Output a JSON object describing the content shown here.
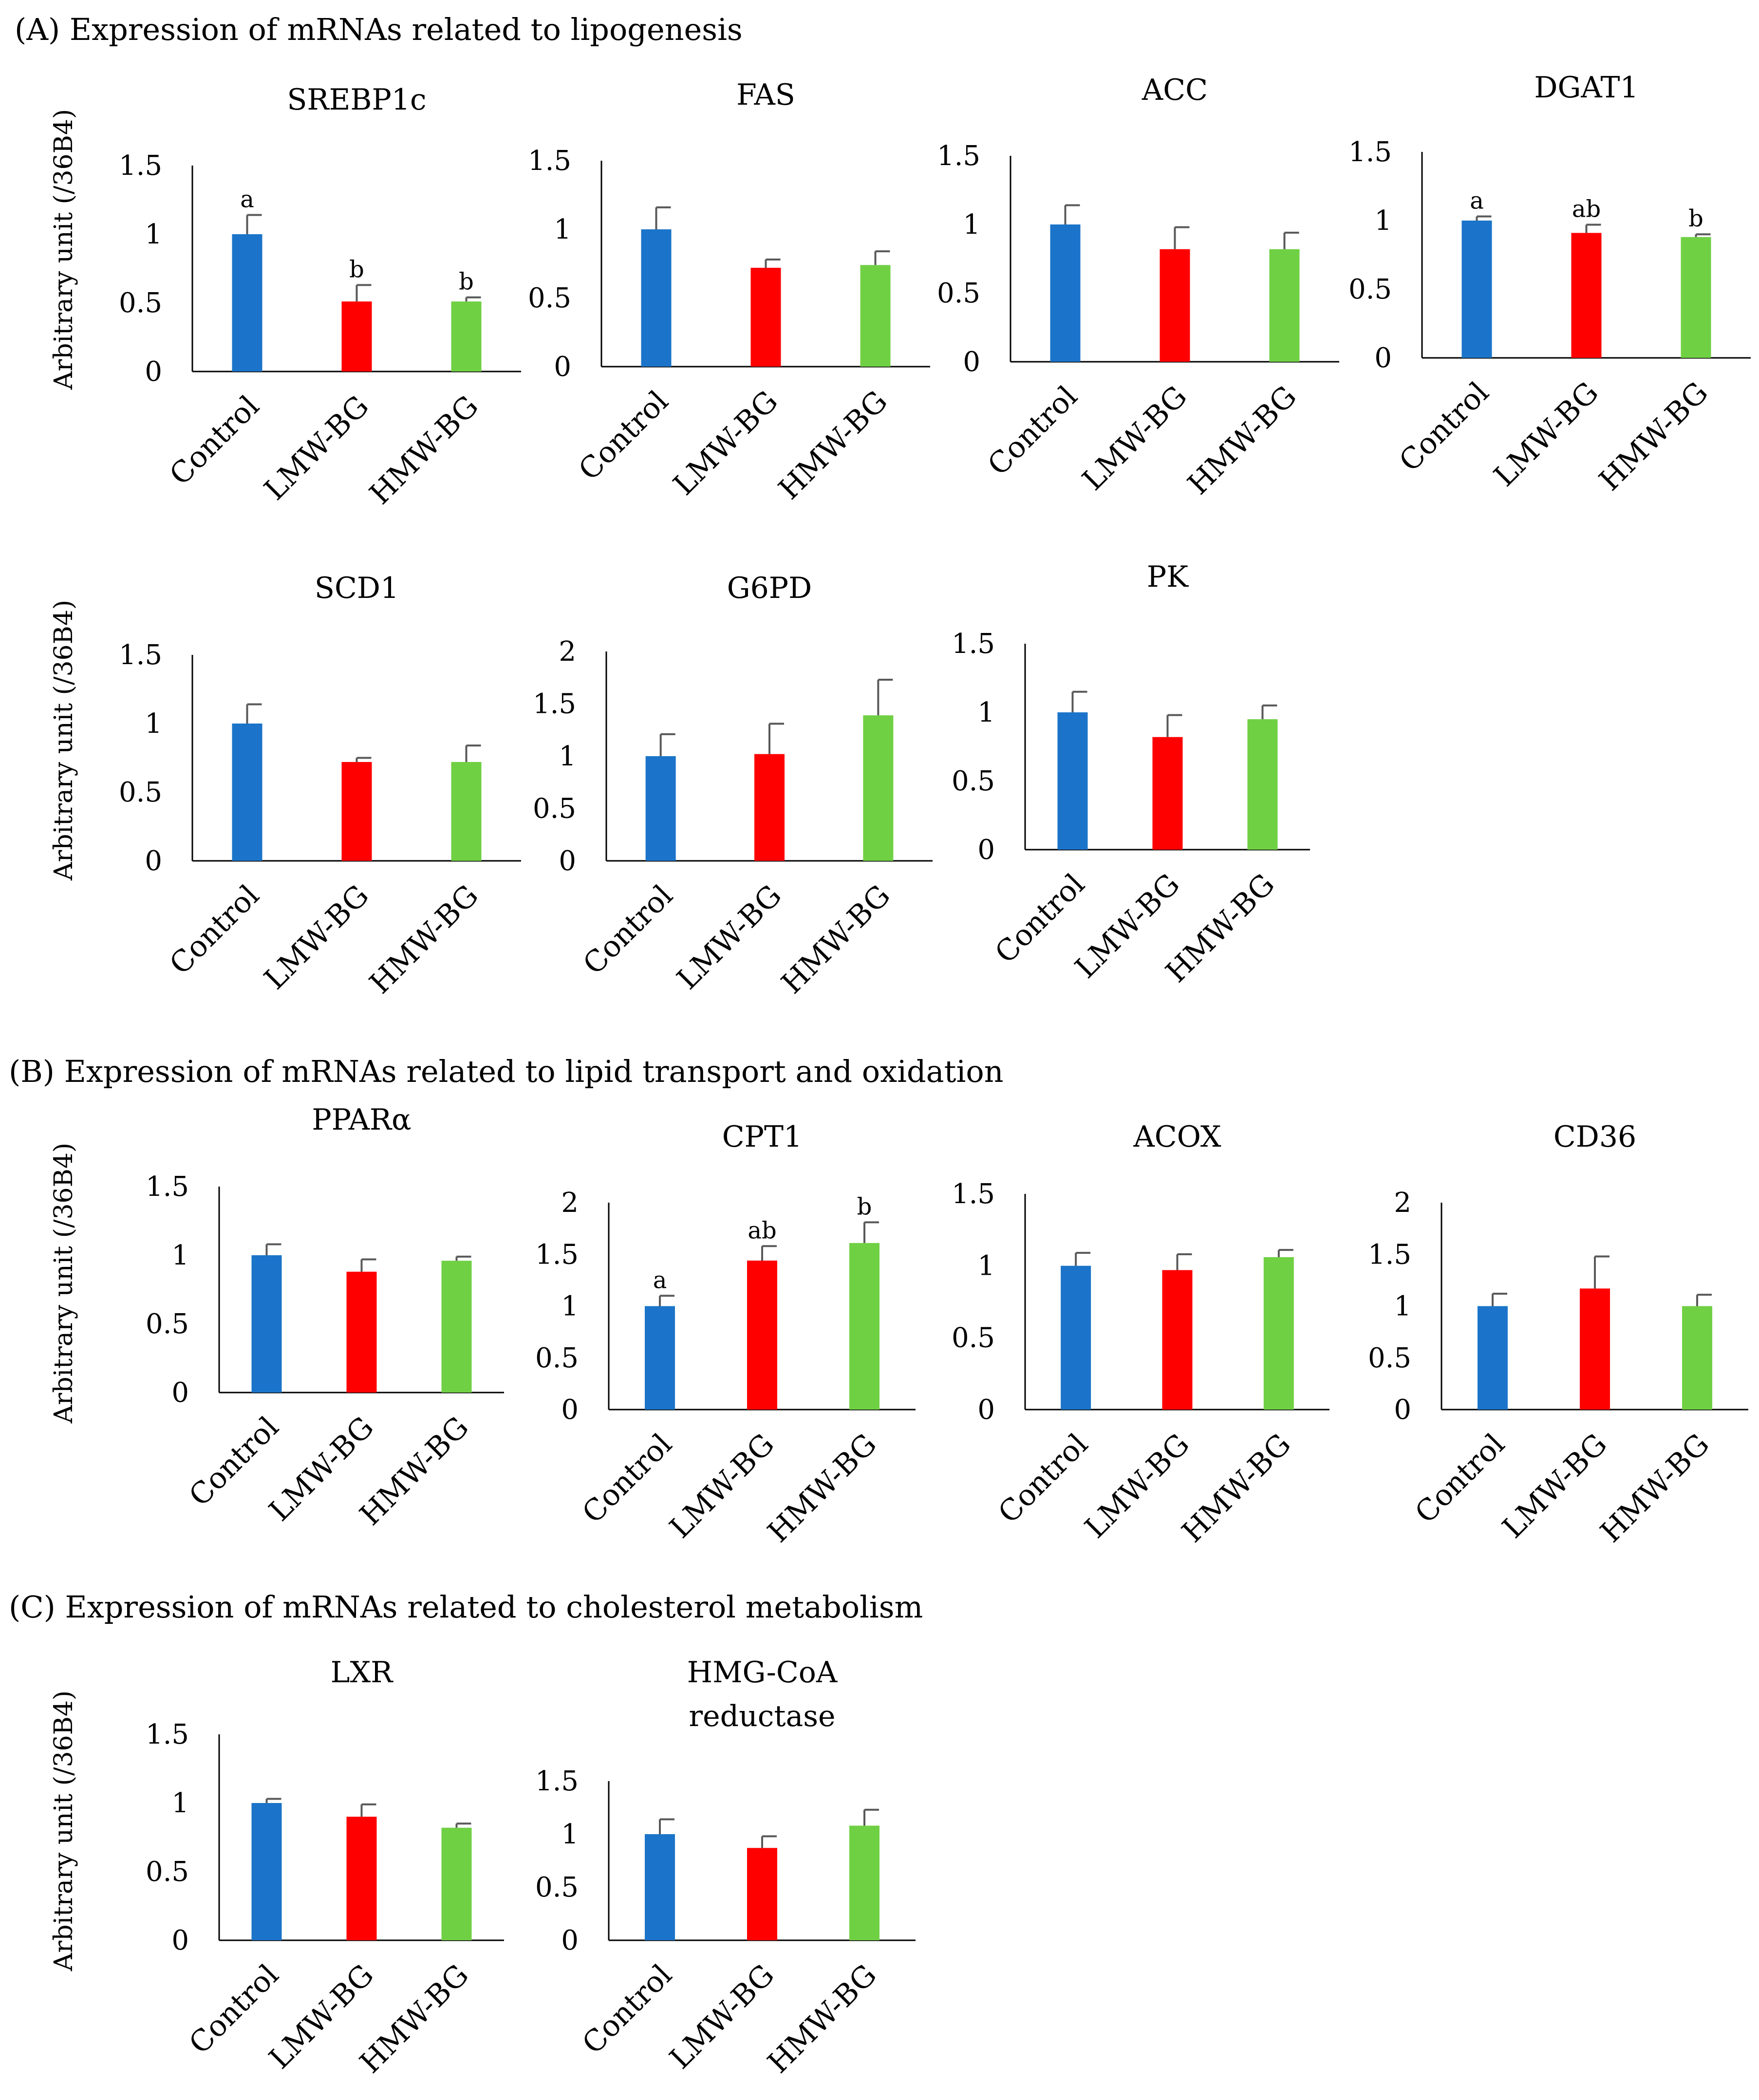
{
  "sections": [
    {
      "id": "A",
      "title": "(A)  Expression of mRNAs related to lipogenesis"
    },
    {
      "id": "B",
      "title": "(B)  Expression of mRNAs related to lipid transport and oxidation"
    },
    {
      "id": "C",
      "title": "(C)  Expression of mRNAs related to cholesterol metabolism"
    }
  ],
  "colors": {
    "Control": "#1b74c9",
    "LMW-BG": "#ff0000",
    "HMW-BG": "#70d044",
    "axis": "#000000",
    "error_bar": "#595959"
  },
  "chart_data": [
    {
      "type": "bar",
      "title": "SREBP1c",
      "ylabel": "Arbitrary unit (/36B4)",
      "categories": [
        "Control",
        "LMW-BG",
        "HMW-BG"
      ],
      "values": [
        1.0,
        0.51,
        0.51
      ],
      "errors": [
        0.14,
        0.12,
        0.03
      ],
      "significance": [
        "a",
        "b",
        "b"
      ],
      "ylim": [
        0,
        1.5
      ],
      "yticks": [
        0,
        0.5,
        1,
        1.5
      ],
      "ytick_labels": [
        "0",
        "0.5",
        "1",
        "1.5"
      ]
    },
    {
      "type": "bar",
      "title": "FAS",
      "ylabel": "",
      "categories": [
        "Control",
        "LMW-BG",
        "HMW-BG"
      ],
      "values": [
        1.0,
        0.72,
        0.74
      ],
      "errors": [
        0.16,
        0.06,
        0.1
      ],
      "significance": [
        "",
        "",
        ""
      ],
      "ylim": [
        0,
        1.5
      ],
      "yticks": [
        0,
        0.5,
        1,
        1.5
      ],
      "ytick_labels": [
        "0",
        "0.5",
        "1",
        "1.5"
      ]
    },
    {
      "type": "bar",
      "title": "ACC",
      "ylabel": "",
      "categories": [
        "Control",
        "LMW-BG",
        "HMW-BG"
      ],
      "values": [
        1.0,
        0.82,
        0.82
      ],
      "errors": [
        0.14,
        0.16,
        0.12
      ],
      "significance": [
        "",
        "",
        ""
      ],
      "ylim": [
        0,
        1.5
      ],
      "yticks": [
        0,
        0.5,
        1,
        1.5
      ],
      "ytick_labels": [
        "0",
        "0.5",
        "1",
        "1.5"
      ]
    },
    {
      "type": "bar",
      "title": "DGAT1",
      "ylabel": "",
      "categories": [
        "Control",
        "LMW-BG",
        "HMW-BG"
      ],
      "values": [
        1.0,
        0.91,
        0.88
      ],
      "errors": [
        0.03,
        0.06,
        0.02
      ],
      "significance": [
        "a",
        "ab",
        "b"
      ],
      "ylim": [
        0,
        1.5
      ],
      "yticks": [
        0,
        0.5,
        1,
        1.5
      ],
      "ytick_labels": [
        "0",
        "0.5",
        "1",
        "1.5"
      ]
    },
    {
      "type": "bar",
      "title": "SCD1",
      "ylabel": "Arbitrary unit (/36B4)",
      "categories": [
        "Control",
        "LMW-BG",
        "HMW-BG"
      ],
      "values": [
        1.0,
        0.72,
        0.72
      ],
      "errors": [
        0.14,
        0.03,
        0.12
      ],
      "significance": [
        "",
        "",
        ""
      ],
      "ylim": [
        0,
        1.5
      ],
      "yticks": [
        0,
        0.5,
        1,
        1.5
      ],
      "ytick_labels": [
        "0",
        "0.5",
        "1",
        "1.5"
      ]
    },
    {
      "type": "bar",
      "title": "G6PD",
      "ylabel": "",
      "categories": [
        "Control",
        "LMW-BG",
        "HMW-BG"
      ],
      "values": [
        1.0,
        1.02,
        1.39
      ],
      "errors": [
        0.21,
        0.29,
        0.34
      ],
      "significance": [
        "",
        "",
        ""
      ],
      "ylim": [
        0,
        2
      ],
      "yticks": [
        0,
        0.5,
        1,
        1.5,
        2
      ],
      "ytick_labels": [
        "0",
        "0.5",
        "1",
        "1.5",
        "2"
      ]
    },
    {
      "type": "bar",
      "title": "PK",
      "ylabel": "",
      "categories": [
        "Control",
        "LMW-BG",
        "HMW-BG"
      ],
      "values": [
        1.0,
        0.82,
        0.95
      ],
      "errors": [
        0.15,
        0.16,
        0.1
      ],
      "significance": [
        "",
        "",
        ""
      ],
      "ylim": [
        0,
        1.5
      ],
      "yticks": [
        0,
        0.5,
        1,
        1.5
      ],
      "ytick_labels": [
        "0",
        "0.5",
        "1",
        "1.5"
      ]
    },
    {
      "type": "bar",
      "title": "PPARα",
      "ylabel": "Arbitrary unit (/36B4)",
      "categories": [
        "Control",
        "LMW-BG",
        "HMW-BG"
      ],
      "values": [
        1.0,
        0.88,
        0.96
      ],
      "errors": [
        0.08,
        0.09,
        0.03
      ],
      "significance": [
        "",
        "",
        ""
      ],
      "ylim": [
        0,
        1.5
      ],
      "yticks": [
        0,
        0.5,
        1,
        1.5
      ],
      "ytick_labels": [
        "0",
        "0.5",
        "1",
        "1.5"
      ]
    },
    {
      "type": "bar",
      "title": "CPT1",
      "ylabel": "",
      "categories": [
        "Control",
        "LMW-BG",
        "HMW-BG"
      ],
      "values": [
        1.0,
        1.44,
        1.61
      ],
      "errors": [
        0.1,
        0.14,
        0.2
      ],
      "significance": [
        "a",
        "ab",
        "b"
      ],
      "ylim": [
        0,
        2
      ],
      "yticks": [
        0,
        0.5,
        1,
        1.5,
        2
      ],
      "ytick_labels": [
        "0",
        "0.5",
        "1",
        "1.5",
        "2"
      ]
    },
    {
      "type": "bar",
      "title": "ACOX",
      "ylabel": "",
      "categories": [
        "Control",
        "LMW-BG",
        "HMW-BG"
      ],
      "values": [
        1.0,
        0.97,
        1.06
      ],
      "errors": [
        0.09,
        0.11,
        0.05
      ],
      "significance": [
        "",
        "",
        ""
      ],
      "ylim": [
        0,
        1.5
      ],
      "yticks": [
        0,
        0.5,
        1,
        1.5
      ],
      "ytick_labels": [
        "0",
        "0.5",
        "1",
        "1.5"
      ]
    },
    {
      "type": "bar",
      "title": "CD36",
      "ylabel": "",
      "categories": [
        "Control",
        "LMW-BG",
        "HMW-BG"
      ],
      "values": [
        1.0,
        1.17,
        1.0
      ],
      "errors": [
        0.12,
        0.31,
        0.11
      ],
      "significance": [
        "",
        "",
        ""
      ],
      "ylim": [
        0,
        2
      ],
      "yticks": [
        0,
        0.5,
        1,
        1.5,
        2
      ],
      "ytick_labels": [
        "0",
        "0.5",
        "1",
        "1.5",
        "2"
      ]
    },
    {
      "type": "bar",
      "title": "LXR",
      "ylabel": "Arbitrary unit (/36B4)",
      "categories": [
        "Control",
        "LMW-BG",
        "HMW-BG"
      ],
      "values": [
        1.0,
        0.9,
        0.82
      ],
      "errors": [
        0.03,
        0.09,
        0.03
      ],
      "significance": [
        "",
        "",
        ""
      ],
      "ylim": [
        0,
        1.5
      ],
      "yticks": [
        0,
        0.5,
        1,
        1.5
      ],
      "ytick_labels": [
        "0",
        "0.5",
        "1",
        "1.5"
      ]
    },
    {
      "type": "bar",
      "title": "HMG-CoA reductase",
      "ylabel": "",
      "categories": [
        "Control",
        "LMW-BG",
        "HMW-BG"
      ],
      "values": [
        1.0,
        0.87,
        1.08
      ],
      "errors": [
        0.14,
        0.11,
        0.15
      ],
      "significance": [
        "",
        "",
        ""
      ],
      "ylim": [
        0,
        1.5
      ],
      "yticks": [
        0,
        0.5,
        1,
        1.5
      ],
      "ytick_labels": [
        "0",
        "0.5",
        "1",
        "1.5"
      ]
    }
  ]
}
